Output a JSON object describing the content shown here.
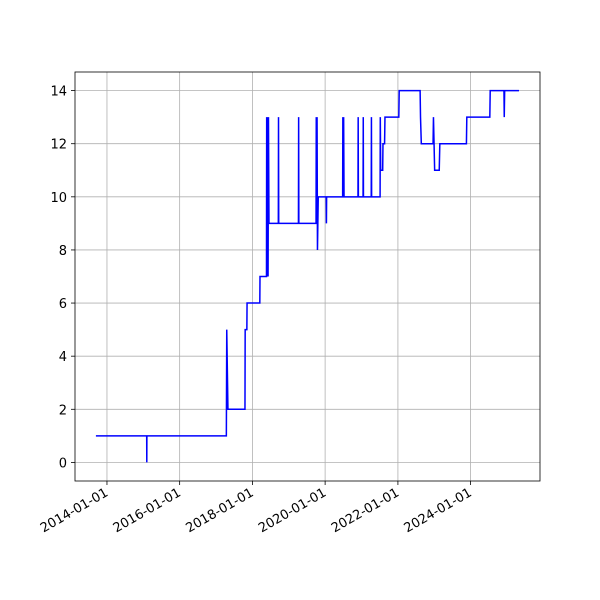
{
  "chart_data": {
    "type": "line",
    "grid": true,
    "color": "#0000ff",
    "x": [
      "2013-09-12",
      "2015-02-04",
      "2015-02-05",
      "2015-02-06",
      "2017-04-14",
      "2017-04-18",
      "2017-04-30",
      "2017-10-18",
      "2017-10-20",
      "2017-11-06",
      "2017-11-08",
      "2018-03-16",
      "2018-03-18",
      "2018-05-22",
      "2018-05-24",
      "2018-05-29",
      "2018-06-02",
      "2018-06-07",
      "2018-06-11",
      "2018-06-16",
      "2018-09-18",
      "2018-09-20",
      "2018-09-22",
      "2019-04-08",
      "2019-04-10",
      "2019-04-12",
      "2019-10-02",
      "2019-10-04",
      "2019-10-08",
      "2019-10-12",
      "2019-10-16",
      "2019-10-24",
      "2020-01-12",
      "2020-01-14",
      "2020-01-16",
      "2020-06-25",
      "2020-06-27",
      "2020-07-01",
      "2020-07-05",
      "2020-07-09",
      "2020-11-26",
      "2020-11-28",
      "2020-11-30",
      "2021-01-16",
      "2021-01-18",
      "2021-01-20",
      "2021-04-08",
      "2021-04-10",
      "2021-04-12",
      "2021-07-06",
      "2021-07-08",
      "2021-07-12",
      "2021-08-01",
      "2021-08-04",
      "2021-08-20",
      "2021-08-24",
      "2022-01-10",
      "2022-01-14",
      "2022-08-12",
      "2022-08-16",
      "2022-08-24",
      "2022-12-20",
      "2022-12-24",
      "2023-01-05",
      "2023-02-20",
      "2023-02-26",
      "2023-11-20",
      "2023-11-24",
      "2024-07-12",
      "2024-07-16",
      "2024-12-01",
      "2024-12-04",
      "2024-12-08",
      "2025-05-01"
    ],
    "values": [
      1,
      1,
      0,
      1,
      1,
      5,
      2,
      2,
      5,
      5,
      6,
      6,
      7,
      7,
      13,
      7,
      13,
      7,
      13,
      9,
      9,
      13,
      9,
      9,
      13,
      9,
      9,
      13,
      9,
      13,
      8,
      10,
      10,
      9,
      10,
      10,
      13,
      10,
      13,
      10,
      10,
      13,
      10,
      10,
      13,
      10,
      10,
      13,
      10,
      10,
      13,
      11,
      11,
      12,
      12,
      13,
      13,
      14,
      14,
      13,
      12,
      12,
      13,
      11,
      11,
      12,
      12,
      13,
      13,
      14,
      14,
      13,
      14,
      14
    ],
    "xlim": [
      "2013-02-14",
      "2025-11-28"
    ],
    "xticks": [
      "2014-01-01",
      "2016-01-01",
      "2018-01-01",
      "2020-01-01",
      "2022-01-01",
      "2024-01-01"
    ],
    "ylim": [
      -0.7,
      14.7
    ],
    "yticks": [
      0,
      2,
      4,
      6,
      8,
      10,
      12,
      14
    ]
  }
}
